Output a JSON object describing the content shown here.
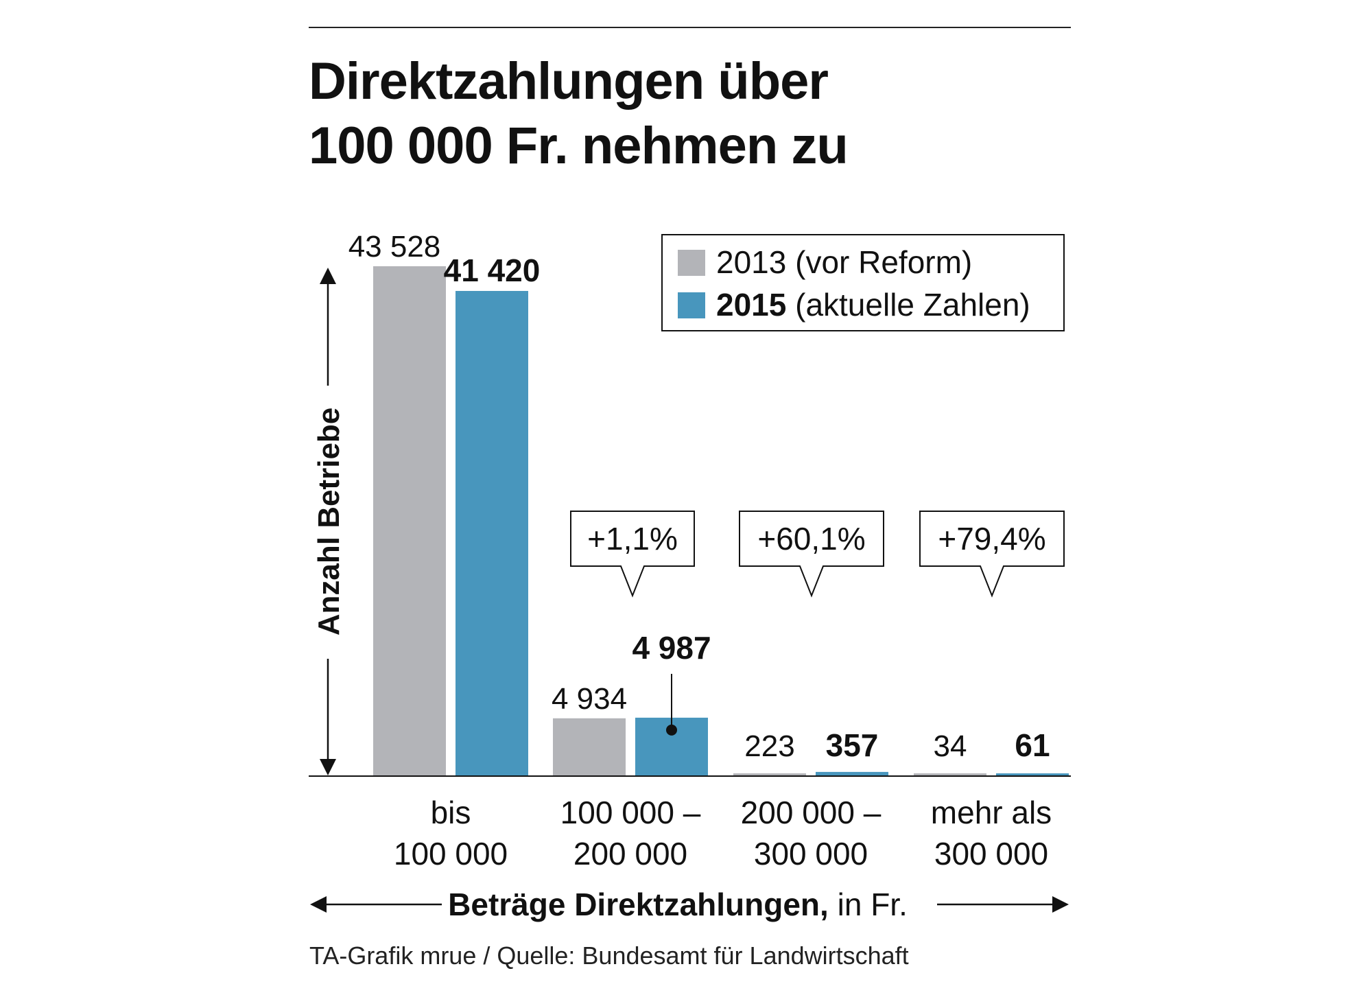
{
  "title": {
    "line1": "Direktzahlungen über",
    "line2": "100 000 Fr. nehmen zu"
  },
  "source": "TA-Grafik mrue / Quelle: Bundesamt für Landwirtschaft",
  "colors": {
    "series_2013": "#b3b4b8",
    "series_2015": "#4896bd",
    "text": "#111111"
  },
  "chart_data": {
    "type": "bar",
    "title": "Direktzahlungen über 100 000 Fr. nehmen zu",
    "xlabel": "Beträge Direktzahlungen, in Fr.",
    "xlabel_bold": "Beträge Direktzahlungen,",
    "xlabel_rest": " in Fr.",
    "ylabel": "Anzahl Betriebe",
    "ylim": [
      0,
      43528
    ],
    "grid": false,
    "legend_position": "top-right",
    "categories": [
      {
        "line1": "bis",
        "line2": "100 000"
      },
      {
        "line1": "100 000 –",
        "line2": "200 000"
      },
      {
        "line1": "200 000 –",
        "line2": "300 000"
      },
      {
        "line1": "mehr als",
        "line2": "300 000"
      }
    ],
    "series": [
      {
        "name": "2013 (vor Reform)",
        "legend_bold": "2013",
        "legend_rest": " (vor Reform)",
        "bold_label": false,
        "values": [
          43528,
          4934,
          223,
          34
        ],
        "labels": [
          "43 528",
          "4 934",
          "223",
          "34"
        ]
      },
      {
        "name": "2015 (aktuelle Zahlen)",
        "legend_bold": "2015",
        "legend_rest": " (aktuelle Zahlen)",
        "bold_label": true,
        "values": [
          41420,
          4987,
          357,
          61
        ],
        "labels": [
          "41 420",
          "4 987",
          "357",
          "61"
        ]
      }
    ],
    "annotations": [
      {
        "category_index": 1,
        "text": "+1,1%"
      },
      {
        "category_index": 2,
        "text": "+60,1%"
      },
      {
        "category_index": 3,
        "text": "+79,4%"
      }
    ]
  }
}
